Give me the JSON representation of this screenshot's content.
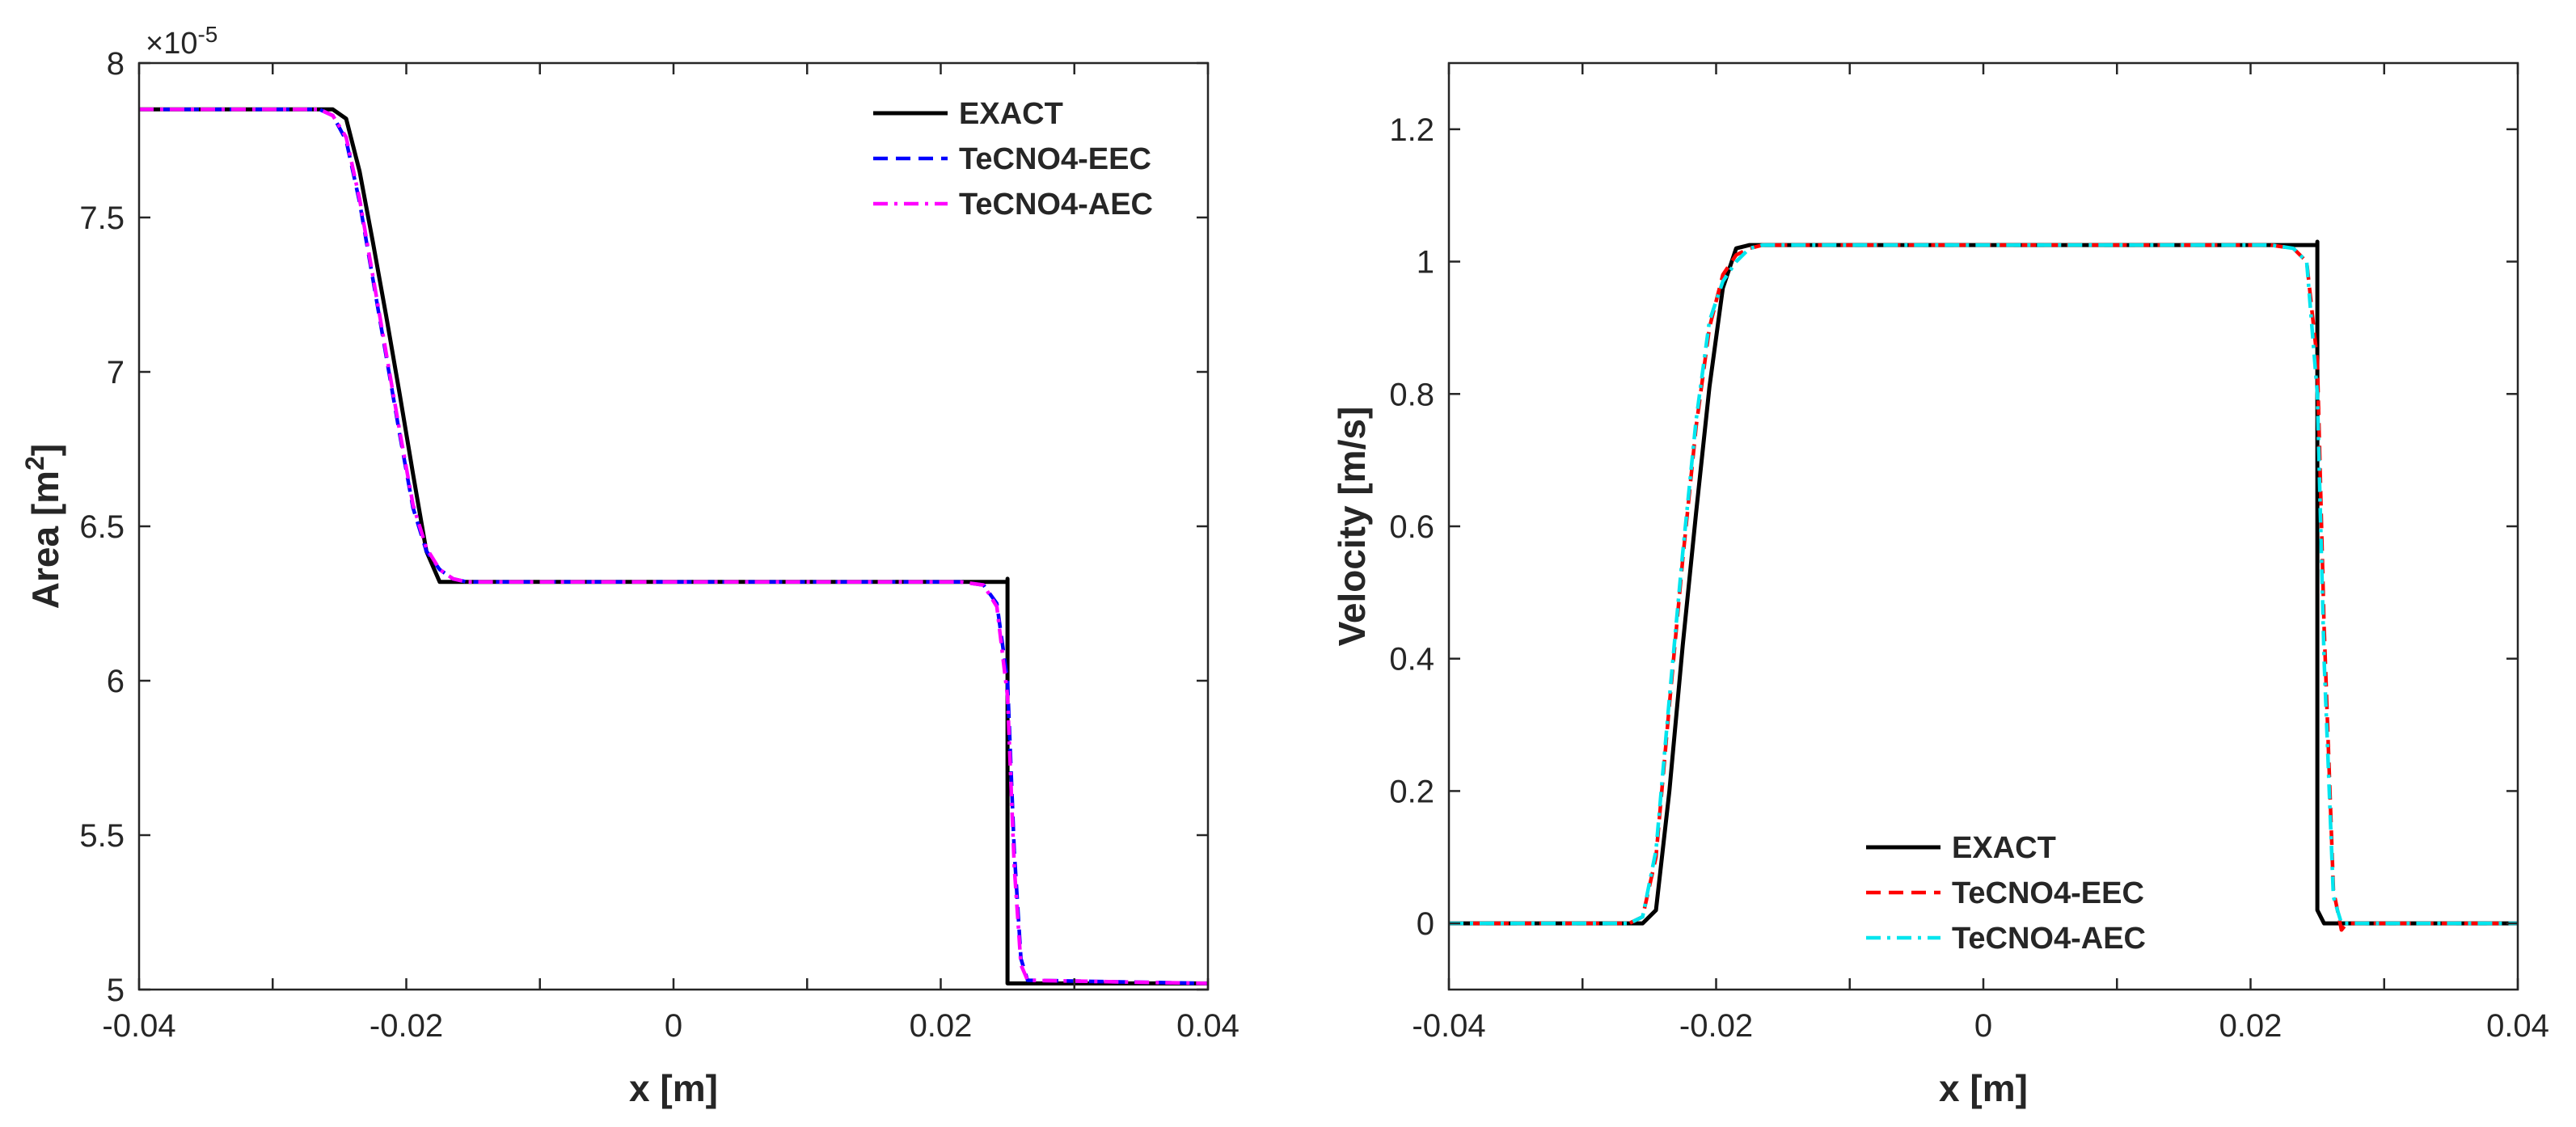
{
  "chart_data": [
    {
      "type": "line",
      "xlabel": "x [m]",
      "ylabel": "Area [m",
      "ylabel_sup": "2",
      "ylabel_close": "]",
      "exponent_base": "×10",
      "exponent_power": "-5",
      "xlim": [
        -0.04,
        0.04
      ],
      "ylim": [
        5,
        8
      ],
      "xticks": [
        -0.04,
        -0.02,
        0,
        0.02,
        0.04
      ],
      "xtick_labels": [
        "-0.04",
        "-0.02",
        "0",
        "0.02",
        "0.04"
      ],
      "yticks": [
        5,
        5.5,
        6,
        6.5,
        7,
        7.5,
        8
      ],
      "ytick_labels": [
        "5",
        "5.5",
        "6",
        "6.5",
        "7",
        "7.5",
        "8"
      ],
      "legend_position": "top-right",
      "series": [
        {
          "name": "EXACT",
          "color": "#000000",
          "style": "solid",
          "x": [
            -0.04,
            -0.0255,
            -0.0245,
            -0.0235,
            -0.0225,
            -0.0215,
            -0.0205,
            -0.0195,
            -0.0185,
            -0.0175,
            0.025,
            0.025,
            0.025,
            0.04
          ],
          "y": [
            7.85,
            7.85,
            7.82,
            7.65,
            7.42,
            7.18,
            6.93,
            6.67,
            6.42,
            6.32,
            6.32,
            6.33,
            5.02,
            5.02
          ]
        },
        {
          "name": "TeCNO4-EEC",
          "color": "#0000ff",
          "style": "dashed",
          "x": [
            -0.04,
            -0.0265,
            -0.0255,
            -0.0245,
            -0.0235,
            -0.0225,
            -0.0215,
            -0.0205,
            -0.0195,
            -0.0185,
            -0.0175,
            -0.0165,
            -0.0155,
            0.0215,
            0.0232,
            0.0242,
            0.025,
            0.0255,
            0.026,
            0.0265,
            0.04
          ],
          "y": [
            7.85,
            7.85,
            7.83,
            7.75,
            7.55,
            7.3,
            7.05,
            6.8,
            6.56,
            6.42,
            6.36,
            6.33,
            6.32,
            6.32,
            6.31,
            6.25,
            6.0,
            5.45,
            5.1,
            5.03,
            5.02
          ]
        },
        {
          "name": "TeCNO4-AEC",
          "color": "#ff00ff",
          "style": "dashdot",
          "x": [
            -0.04,
            -0.0265,
            -0.0255,
            -0.0245,
            -0.0235,
            -0.0225,
            -0.0215,
            -0.0205,
            -0.0195,
            -0.0185,
            -0.0175,
            -0.0165,
            -0.0155,
            0.0215,
            0.0232,
            0.0242,
            0.025,
            0.0255,
            0.026,
            0.0265,
            0.04
          ],
          "y": [
            7.85,
            7.85,
            7.83,
            7.76,
            7.56,
            7.31,
            7.06,
            6.81,
            6.57,
            6.43,
            6.36,
            6.33,
            6.32,
            6.32,
            6.31,
            6.24,
            5.95,
            5.4,
            5.08,
            5.03,
            5.02
          ]
        }
      ]
    },
    {
      "type": "line",
      "xlabel": "x [m]",
      "ylabel": "Velocity [m/s]",
      "xlim": [
        -0.04,
        0.04
      ],
      "ylim": [
        -0.1,
        1.3
      ],
      "xticks": [
        -0.04,
        -0.02,
        0,
        0.02,
        0.04
      ],
      "xtick_labels": [
        "-0.04",
        "-0.02",
        "0",
        "0.02",
        "0.04"
      ],
      "yticks": [
        0,
        0.2,
        0.4,
        0.6,
        0.8,
        1,
        1.2
      ],
      "ytick_labels": [
        "0",
        "0.2",
        "0.4",
        "0.6",
        "0.8",
        "1",
        "1.2"
      ],
      "legend_position": "bottom-center",
      "series": [
        {
          "name": "EXACT",
          "color": "#000000",
          "style": "solid",
          "x": [
            -0.04,
            -0.0255,
            -0.0245,
            -0.0235,
            -0.0225,
            -0.0215,
            -0.0205,
            -0.0195,
            -0.0185,
            -0.0175,
            0.025,
            0.025,
            0.025,
            0.0255,
            0.04
          ],
          "y": [
            0,
            0,
            0.02,
            0.2,
            0.42,
            0.62,
            0.81,
            0.96,
            1.02,
            1.025,
            1.025,
            1.03,
            0.02,
            0,
            0
          ]
        },
        {
          "name": "TeCNO4-EEC",
          "color": "#ff0000",
          "style": "dashed",
          "x": [
            -0.04,
            -0.0265,
            -0.0255,
            -0.0245,
            -0.0235,
            -0.0225,
            -0.0215,
            -0.0205,
            -0.0195,
            -0.0185,
            -0.0175,
            -0.0165,
            -0.0155,
            0.0215,
            0.0232,
            0.0242,
            0.025,
            0.0255,
            0.0262,
            0.0268,
            0.0272,
            0.04
          ],
          "y": [
            0,
            0,
            0.01,
            0.1,
            0.33,
            0.55,
            0.75,
            0.9,
            0.98,
            1.01,
            1.02,
            1.025,
            1.025,
            1.025,
            1.02,
            1.0,
            0.85,
            0.45,
            0.05,
            -0.01,
            0,
            0
          ]
        },
        {
          "name": "TeCNO4-AEC",
          "color": "#00e5ee",
          "style": "dashdot",
          "x": [
            -0.04,
            -0.0265,
            -0.0255,
            -0.0245,
            -0.0235,
            -0.0225,
            -0.0215,
            -0.0205,
            -0.0195,
            -0.0185,
            -0.0175,
            -0.0165,
            -0.0155,
            0.0215,
            0.0232,
            0.0242,
            0.025,
            0.0255,
            0.0262,
            0.0268,
            0.04
          ],
          "y": [
            0,
            0,
            0.01,
            0.11,
            0.34,
            0.56,
            0.76,
            0.91,
            0.97,
            1.0,
            1.02,
            1.025,
            1.025,
            1.025,
            1.02,
            1.0,
            0.8,
            0.4,
            0.04,
            0,
            0
          ]
        }
      ]
    }
  ]
}
